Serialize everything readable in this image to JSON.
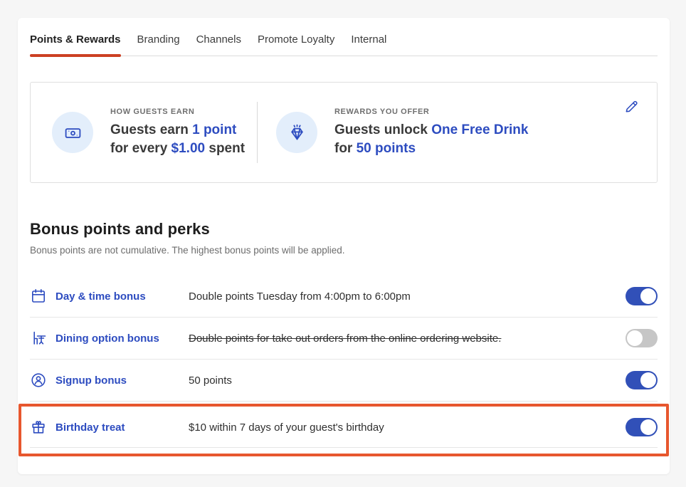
{
  "tabs": {
    "items": [
      {
        "label": "Points & Rewards",
        "active": true
      },
      {
        "label": "Branding",
        "active": false
      },
      {
        "label": "Channels",
        "active": false
      },
      {
        "label": "Promote Loyalty",
        "active": false
      },
      {
        "label": "Internal",
        "active": false
      }
    ]
  },
  "summary_card": {
    "edit_icon": "pencil-icon",
    "sections": [
      {
        "icon": "banknote-icon",
        "label": "HOW GUESTS EARN",
        "parts": [
          {
            "t": "Guests earn "
          },
          {
            "t": "1 point",
            "link": true
          },
          {
            "br": true
          },
          {
            "t": "for every "
          },
          {
            "t": "$1.00",
            "link": true
          },
          {
            "t": " spent"
          }
        ]
      },
      {
        "icon": "gem-icon",
        "label": "REWARDS YOU OFFER",
        "parts": [
          {
            "t": "Guests unlock "
          },
          {
            "t": "One Free Drink",
            "link": true
          },
          {
            "br": true
          },
          {
            "t": "for "
          },
          {
            "t": "50 points",
            "link": true
          }
        ]
      }
    ]
  },
  "bonus_section": {
    "title": "Bonus points and perks",
    "subtitle": "Bonus points are not cumulative. The highest bonus points will be applied.",
    "rows": [
      {
        "icon": "calendar-icon",
        "label": "Day & time bonus",
        "description": "Double points Tuesday from 4:00pm to 6:00pm",
        "enabled": true,
        "strikethrough": false,
        "highlighted": false
      },
      {
        "icon": "dining-table-icon",
        "label": "Dining option bonus",
        "description": "Double points for take out orders from the online ordering website.",
        "enabled": false,
        "strikethrough": true,
        "highlighted": false
      },
      {
        "icon": "person-circle-icon",
        "label": "Signup bonus",
        "description": "50 points",
        "enabled": true,
        "strikethrough": false,
        "highlighted": false
      },
      {
        "icon": "gift-icon",
        "label": "Birthday treat",
        "description": "$10 within 7 days of your guest's birthday",
        "enabled": true,
        "strikethrough": false,
        "highlighted": true
      }
    ]
  },
  "colors": {
    "accent_blue": "#2d4cc0",
    "toggle_on_blue": "#3150b8",
    "tab_underline_orange": "#cc4023",
    "highlight_orange": "#e7572e",
    "icon_circle_bg": "#e3eefb",
    "page_background": "#f6f6f6"
  }
}
